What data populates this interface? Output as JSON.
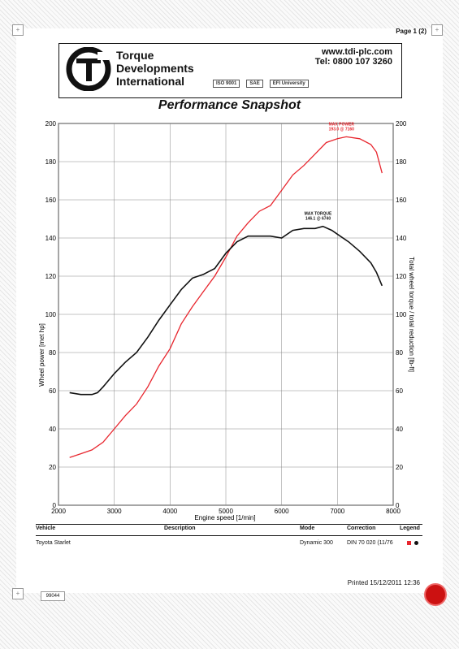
{
  "page": {
    "number": "Page 1 (2)",
    "printed": "Printed 15/12/2011 12:36",
    "record_id": "99044"
  },
  "company": {
    "line1": "Torque",
    "line2": "Developments",
    "line3": "International",
    "website": "www.tdi-plc.com",
    "phone": "Tel: 0800 107 3260"
  },
  "certs": [
    "ISO 9001",
    "SAE",
    "EFI University"
  ],
  "report": {
    "title": "Performance Snapshot"
  },
  "table": {
    "headers": {
      "vehicle": "Vehicle",
      "description": "Description",
      "mode": "Mode",
      "correction": "Correction",
      "legend": "Legend"
    },
    "row": {
      "vehicle": "Toyota Starlet",
      "description": "",
      "mode": "Dynamic 300",
      "correction": "DIN 70 020 (11/76"
    }
  },
  "colors": {
    "power": "#e8262e",
    "torque": "#111111",
    "grid": "#888888"
  },
  "chart_data": {
    "type": "line",
    "xlabel": "Engine speed [1/min]",
    "ylabel": "Wheel power [met hp]",
    "y2label": "Total wheel torque / total reduction [lb-ft]",
    "xlim": [
      2000,
      8000
    ],
    "ylim": [
      0,
      200
    ],
    "y2lim": [
      0,
      200
    ],
    "xticks": [
      2000,
      3000,
      4000,
      5000,
      6000,
      7000,
      8000
    ],
    "yticks": [
      0,
      20,
      40,
      60,
      80,
      100,
      120,
      140,
      160,
      180,
      200
    ],
    "grid": true,
    "annotations": [
      {
        "series": "power",
        "text1": "MAX POWER",
        "text2": "193.0 @ 7160",
        "x": 7160,
        "y": 193
      },
      {
        "series": "torque",
        "text1": "MAX TORQUE",
        "text2": "146.1 @ 6740",
        "x": 6740,
        "y": 146.1
      }
    ],
    "series": [
      {
        "key": "power",
        "axis": "left",
        "x": [
          2200,
          2400,
          2600,
          2800,
          3000,
          3200,
          3400,
          3600,
          3800,
          4000,
          4200,
          4400,
          4600,
          4800,
          5000,
          5200,
          5400,
          5600,
          5800,
          6000,
          6200,
          6400,
          6600,
          6800,
          7000,
          7160,
          7400,
          7600,
          7700,
          7800
        ],
        "y": [
          25,
          27,
          29,
          33,
          40,
          47,
          53,
          62,
          73,
          82,
          95,
          104,
          112,
          120,
          130,
          141,
          148,
          154,
          157,
          165,
          173,
          178,
          184,
          190,
          192,
          193,
          192,
          189,
          185,
          174
        ]
      },
      {
        "key": "torque",
        "axis": "right",
        "x": [
          2200,
          2400,
          2600,
          2700,
          2800,
          3000,
          3200,
          3400,
          3600,
          3800,
          4000,
          4200,
          4400,
          4600,
          4800,
          5000,
          5200,
          5400,
          5600,
          5800,
          6000,
          6200,
          6400,
          6600,
          6740,
          6900,
          7000,
          7200,
          7400,
          7600,
          7700,
          7800
        ],
        "y": [
          59,
          58,
          58,
          59,
          62,
          69,
          75,
          80,
          88,
          97,
          105,
          113,
          119,
          121,
          124,
          132,
          138,
          141,
          141,
          141,
          140,
          144,
          145,
          145,
          146.1,
          144,
          142,
          138,
          133,
          127,
          122,
          115
        ]
      }
    ]
  }
}
